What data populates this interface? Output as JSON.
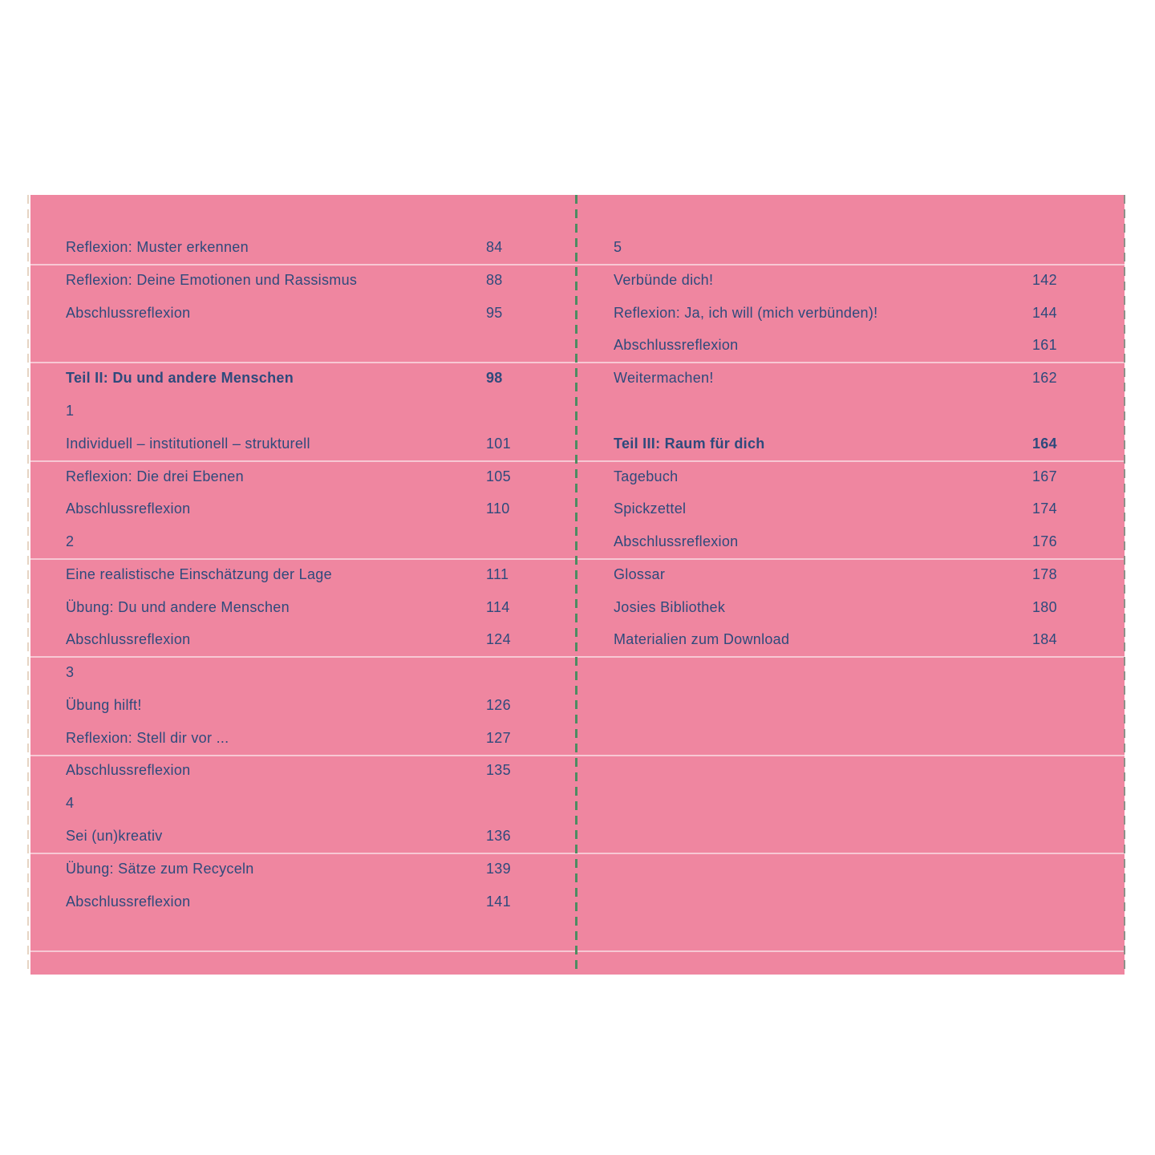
{
  "document": {
    "kind": "book table of contents spread",
    "language": "German"
  },
  "colors": {
    "background": "#ffffff",
    "sheet_pink": "#EF86A0",
    "rule_line_pink": "#F7C8D4",
    "text_navy": "#2E4A7C",
    "center_fold_green": "#4E8C61",
    "right_edge_dash_gray": "#8E9089",
    "left_edge_dash_tan": "#E6D4C3"
  },
  "left_page": {
    "entries": [
      {
        "row": 1,
        "label": "Reflexion: Muster erkennen",
        "page": "84",
        "bold": false
      },
      {
        "row": 2,
        "label": "Reflexion: Deine Emotionen und Rassismus",
        "page": "88",
        "bold": false
      },
      {
        "row": 3,
        "label": "Abschlussreflexion",
        "page": "95",
        "bold": false
      },
      {
        "row": 5,
        "label": "Teil II: Du und andere Menschen",
        "page": "98",
        "bold": true
      },
      {
        "row": 6,
        "label": "1",
        "page": "",
        "bold": false
      },
      {
        "row": 7,
        "label": "Individuell – institutionell – strukturell",
        "page": "101",
        "bold": false
      },
      {
        "row": 8,
        "label": "Reflexion: Die drei Ebenen",
        "page": "105",
        "bold": false
      },
      {
        "row": 9,
        "label": "Abschlussreflexion",
        "page": "110",
        "bold": false
      },
      {
        "row": 10,
        "label": "2",
        "page": "",
        "bold": false
      },
      {
        "row": 11,
        "label": "Eine realistische Einschätzung der Lage",
        "page": "111",
        "bold": false
      },
      {
        "row": 12,
        "label": "Übung: Du und andere Menschen",
        "page": "114",
        "bold": false
      },
      {
        "row": 13,
        "label": "Abschlussreflexion",
        "page": "124",
        "bold": false
      },
      {
        "row": 14,
        "label": "3",
        "page": "",
        "bold": false
      },
      {
        "row": 15,
        "label": "Übung hilft!",
        "page": "126",
        "bold": false
      },
      {
        "row": 16,
        "label": "Reflexion: Stell dir vor ...",
        "page": "127",
        "bold": false
      },
      {
        "row": 17,
        "label": "Abschlussreflexion",
        "page": "135",
        "bold": false
      },
      {
        "row": 18,
        "label": "4",
        "page": "",
        "bold": false
      },
      {
        "row": 19,
        "label": "Sei (un)kreativ",
        "page": "136",
        "bold": false
      },
      {
        "row": 20,
        "label": "Übung: Sätze zum Recyceln",
        "page": "139",
        "bold": false
      },
      {
        "row": 21,
        "label": "Abschlussreflexion",
        "page": "141",
        "bold": false
      }
    ]
  },
  "right_page": {
    "entries": [
      {
        "row": 1,
        "label": "5",
        "page": "",
        "bold": false
      },
      {
        "row": 2,
        "label": "Verbünde dich!",
        "page": "142",
        "bold": false
      },
      {
        "row": 3,
        "label": "Reflexion: Ja, ich will (mich verbünden)!",
        "page": "144",
        "bold": false
      },
      {
        "row": 4,
        "label": "Abschlussreflexion",
        "page": "161",
        "bold": false
      },
      {
        "row": 5,
        "label": "Weitermachen!",
        "page": "162",
        "bold": false
      },
      {
        "row": 7,
        "label": "Teil III: Raum für dich",
        "page": "164",
        "bold": true
      },
      {
        "row": 8,
        "label": "Tagebuch",
        "page": "167",
        "bold": false
      },
      {
        "row": 9,
        "label": "Spickzettel",
        "page": "174",
        "bold": false
      },
      {
        "row": 10,
        "label": "Abschlussreflexion",
        "page": "176",
        "bold": false
      },
      {
        "row": 11,
        "label": "Glossar",
        "page": "178",
        "bold": false
      },
      {
        "row": 12,
        "label": "Josies Bibliothek",
        "page": "180",
        "bold": false
      },
      {
        "row": 13,
        "label": "Materialien zum Download",
        "page": "184",
        "bold": false
      }
    ]
  }
}
